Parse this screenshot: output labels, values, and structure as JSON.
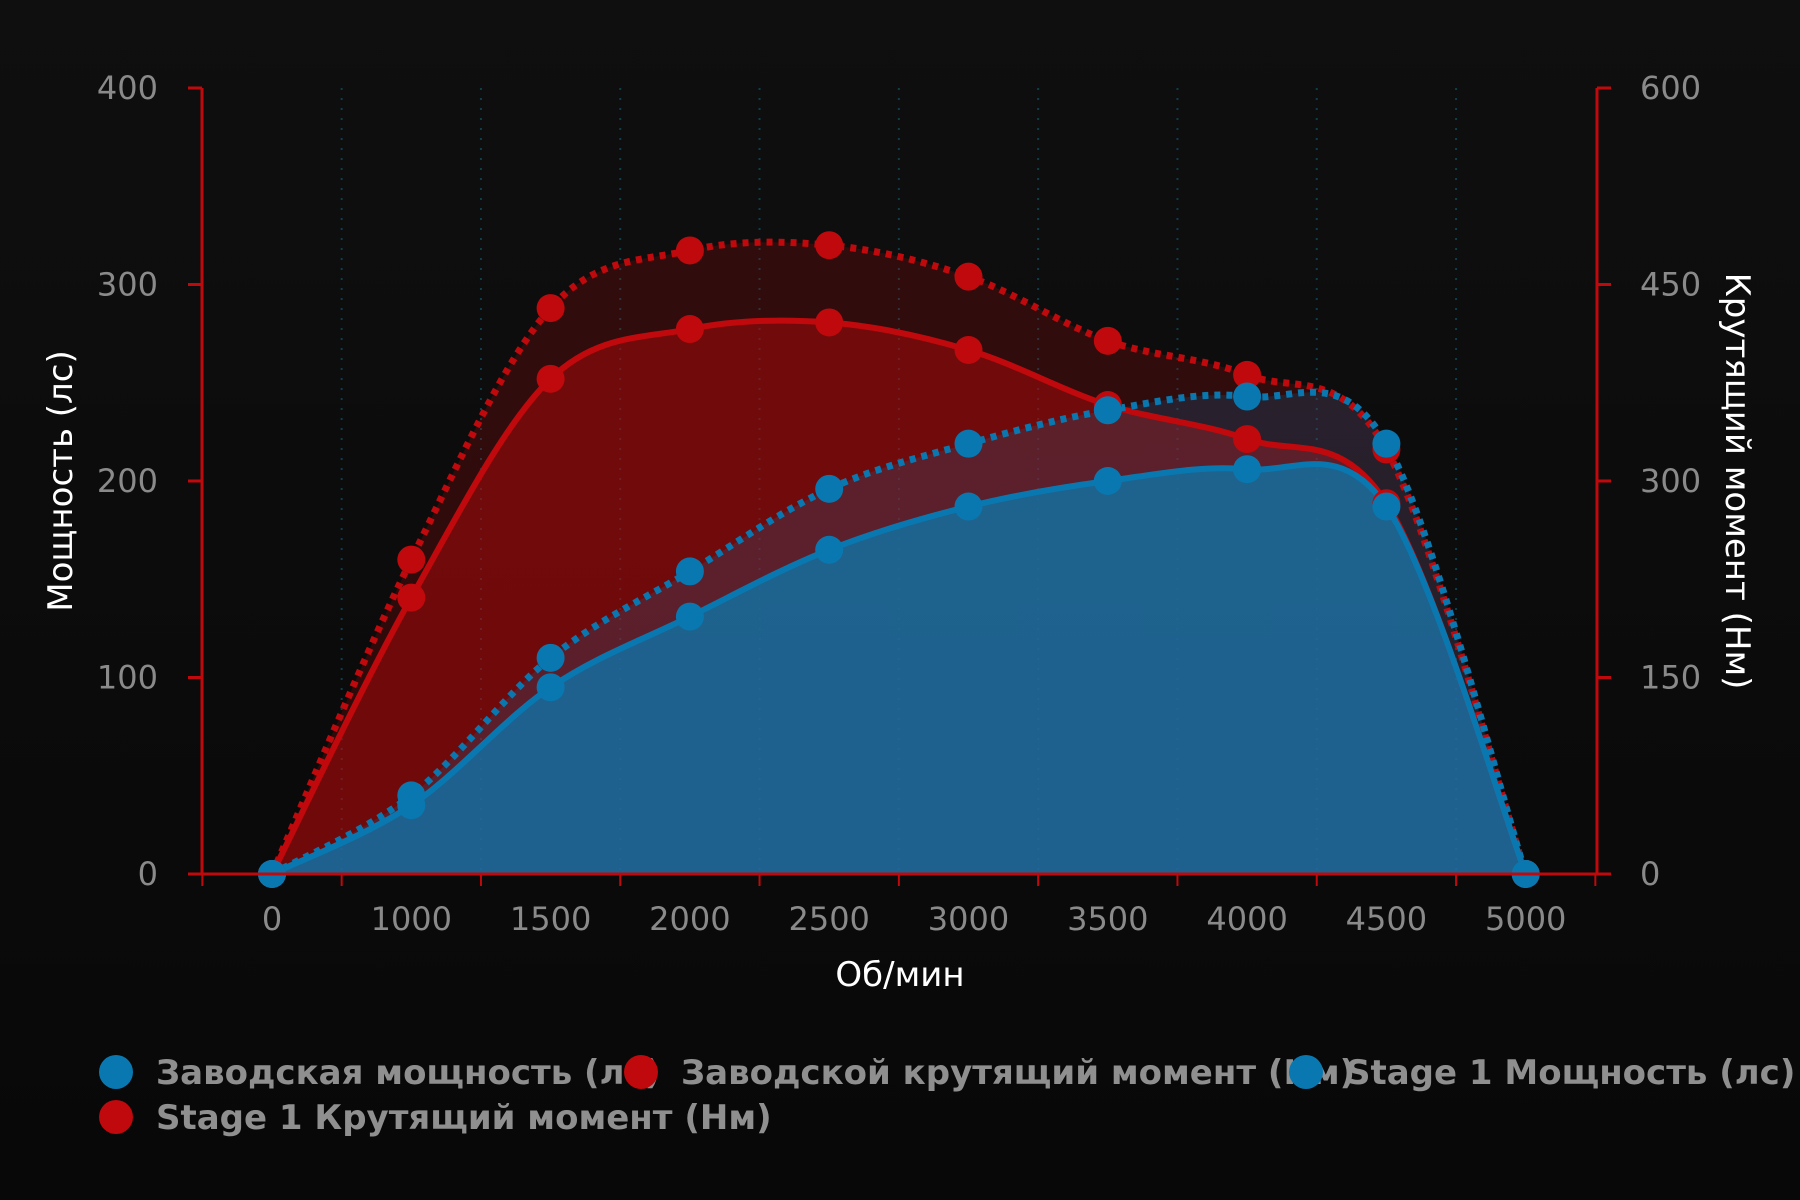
{
  "chart_data": {
    "type": "area",
    "x": [
      0,
      1000,
      1500,
      2000,
      2500,
      3000,
      3500,
      4000,
      4500,
      5000
    ],
    "xlabel": "Об/мин",
    "ylabel_left": "Мощность (лс)",
    "ylabel_right": "Крутящий момент (Нм)",
    "x_tick_labels": [
      "0",
      "1000",
      "1500",
      "2000",
      "2500",
      "3000",
      "3500",
      "4000",
      "4500",
      "5000"
    ],
    "ylim_left": [
      0,
      400
    ],
    "ylim_right": [
      0,
      600
    ],
    "y_ticks_left": [
      "0",
      "100",
      "200",
      "300",
      "400"
    ],
    "y_ticks_right": [
      "0",
      "150",
      "300",
      "450",
      "600"
    ],
    "grid": "vertical dotted",
    "legend_position": "bottom",
    "series": [
      {
        "name": "Заводская мощность (лс)",
        "axis": "left",
        "color": "#0a78b0",
        "style": "solid",
        "values": [
          0,
          35,
          95,
          131,
          165,
          187,
          200,
          206,
          187,
          0
        ]
      },
      {
        "name": "Заводской крутящий момент (Нм)",
        "axis": "right",
        "color": "#c0090c",
        "style": "solid",
        "values": [
          0,
          211,
          378,
          416,
          421,
          400,
          358,
          332,
          283,
          0
        ]
      },
      {
        "name": "Stage 1 Мощность (лс)",
        "axis": "left",
        "color": "#0a78b0",
        "style": "dotted",
        "values": [
          0,
          40,
          110,
          154,
          196,
          219,
          236,
          243,
          219,
          0
        ]
      },
      {
        "name": "Stage 1 Крутящий момент (Нм)",
        "axis": "right",
        "color": "#c0090c",
        "style": "dotted",
        "values": [
          0,
          240,
          432,
          476,
          480,
          456,
          407,
          381,
          324,
          0
        ]
      }
    ]
  }
}
